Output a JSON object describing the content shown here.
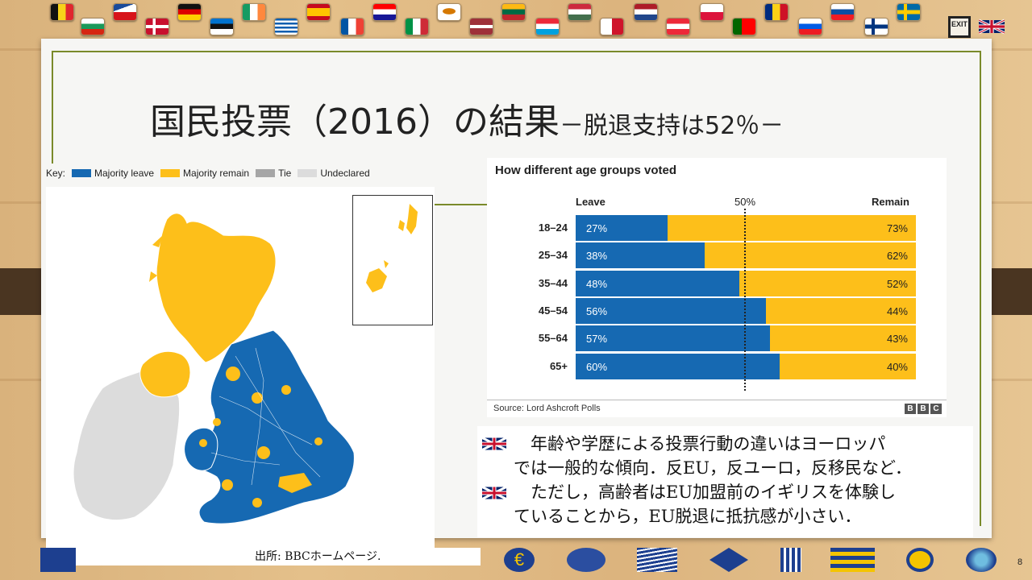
{
  "title": {
    "main": "国民投票（2016）の結果",
    "sub": "－脱退支持は52％－"
  },
  "exit_label": "EXIT",
  "map": {
    "key_label": "Key:",
    "legend": [
      {
        "label": "Majority leave",
        "color": "#1669b2"
      },
      {
        "label": "Majority remain",
        "color": "#fdbf1a"
      },
      {
        "label": "Tie",
        "color": "#a6a6a6"
      },
      {
        "label": "Undeclared",
        "color": "#dcdcdc"
      }
    ],
    "source": "出所: BBCホームページ."
  },
  "chart": {
    "title": "How different age groups voted",
    "leave_head": "Leave",
    "fifty_head": "50%",
    "remain_head": "Remain",
    "source": "Source: Lord Ashcroft Polls",
    "brand": [
      "B",
      "B",
      "C"
    ]
  },
  "chart_data": {
    "type": "bar",
    "stacked": true,
    "orientation": "horizontal",
    "title": "How different age groups voted",
    "categories": [
      "18–24",
      "25–34",
      "35–44",
      "45–54",
      "55–64",
      "65+"
    ],
    "series": [
      {
        "name": "Leave",
        "values": [
          27,
          38,
          48,
          56,
          57,
          60
        ],
        "color": "#1669b2"
      },
      {
        "name": "Remain",
        "values": [
          73,
          62,
          52,
          44,
          43,
          40
        ],
        "color": "#fdbf1a"
      }
    ],
    "value_labels_leave": [
      "27%",
      "38%",
      "48%",
      "56%",
      "57%",
      "60%"
    ],
    "value_labels_remain": [
      "73%",
      "62%",
      "52%",
      "44%",
      "43%",
      "40%"
    ],
    "reference_line": 50,
    "xlim": [
      0,
      100
    ]
  },
  "notes": {
    "line1": "　年齢や学歴による投票行動の違いはヨーロッパ",
    "line2": "では一般的な傾向．反EU，反ユーロ，反移民など．",
    "line3": "　ただし，高齢者はEU加盟前のイギリスを体験し",
    "line4": "ていることから，EU脱退に抵抗感が小さい．"
  },
  "page_number": "8",
  "colors": {
    "leave": "#1669b2",
    "remain": "#fdbf1a",
    "frame": "#7a8a2a"
  }
}
